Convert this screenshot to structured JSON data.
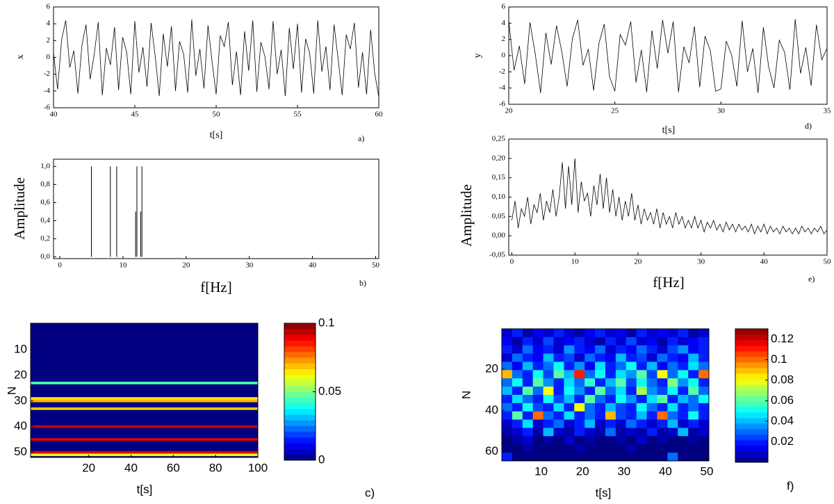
{
  "chart_data": [
    {
      "type": "line",
      "color": "#000000",
      "xlabel": "t[s]",
      "ylabel": "x",
      "annotation": "a)",
      "x": [
        40,
        40.25,
        40.5,
        40.75,
        41,
        41.25,
        41.5,
        41.75,
        42,
        42.25,
        42.5,
        42.75,
        43,
        43.25,
        43.5,
        43.75,
        44,
        44.25,
        44.5,
        44.75,
        45,
        45.25,
        45.5,
        45.75,
        46,
        46.25,
        46.5,
        46.75,
        47,
        47.25,
        47.5,
        47.75,
        48,
        48.25,
        48.5,
        48.75,
        49,
        49.25,
        49.5,
        49.75,
        50,
        50.25,
        50.5,
        50.75,
        51,
        51.25,
        51.5,
        51.75,
        52,
        52.25,
        52.5,
        52.75,
        53,
        53.25,
        53.5,
        53.75,
        54,
        54.25,
        54.5,
        54.75,
        55,
        55.25,
        55.5,
        55.75,
        56,
        56.25,
        56.5,
        56.75,
        57,
        57.25,
        57.5,
        57.75,
        58,
        58.25,
        58.5,
        58.75,
        59,
        59.25,
        59.5,
        59.75,
        60
      ],
      "values": [
        0.5,
        -3.8,
        2.1,
        4.4,
        -1.2,
        0.8,
        -4.3,
        1.5,
        3.9,
        -2.6,
        0.3,
        4.2,
        -4.5,
        1.1,
        -0.9,
        3.6,
        -3.9,
        2.4,
        0.6,
        -4.4,
        4.3,
        -1.8,
        1.2,
        -3.5,
        4.1,
        0.2,
        -4.6,
        2.8,
        -1.1,
        3.7,
        -4.0,
        1.9,
        0.4,
        -4.2,
        4.5,
        -2.2,
        1.0,
        -3.7,
        3.8,
        -0.5,
        -4.4,
        2.6,
        1.3,
        4.2,
        -3.3,
        0.7,
        -4.5,
        3.1,
        -1.6,
        4.4,
        -4.1,
        1.8,
        0.1,
        -3.8,
        4.3,
        -2.0,
        0.9,
        -4.6,
        3.5,
        -1.4,
        4.0,
        -4.2,
        2.2,
        0.5,
        -4.3,
        4.4,
        -1.7,
        1.3,
        -3.9,
        3.9,
        -0.2,
        -4.5,
        2.7,
        1.0,
        4.1,
        -3.6,
        0.6,
        -4.4,
        3.3,
        -1.9,
        -4.7
      ],
      "xlim": [
        40,
        60
      ],
      "xticks": [
        40,
        45,
        50,
        55,
        60
      ],
      "ylim": [
        -6,
        6
      ],
      "yticks": [
        -6,
        -4,
        -2,
        0,
        2,
        4,
        6
      ]
    },
    {
      "type": "stem",
      "color": "#000000",
      "xlabel": "f[Hz]",
      "ylabel": "Amplitude",
      "annotation": "b)",
      "x": [
        5,
        8,
        9,
        12,
        12.2,
        12.8,
        13
      ],
      "values": [
        1,
        1,
        1,
        0.5,
        1,
        0.5,
        1
      ],
      "xlim": [
        -1,
        50.5
      ],
      "xticks": [
        0,
        10,
        20,
        30,
        40,
        50
      ],
      "ylim": [
        -0.02,
        1.08
      ],
      "yticks": [
        {
          "value": 0,
          "label": "0,0"
        },
        {
          "value": 0.2,
          "label": "0,2"
        },
        {
          "value": 0.4,
          "label": "0,4"
        },
        {
          "value": 0.6,
          "label": "0,6"
        },
        {
          "value": 0.8,
          "label": "0,8"
        },
        {
          "value": 1,
          "label": "1,0"
        }
      ]
    },
    {
      "type": "heatmap",
      "colormap": "jet",
      "xlabel": "t[s]",
      "ylabel": "N",
      "annotation": "c)",
      "yreverse": true,
      "values": [
        0,
        0,
        0,
        0,
        0,
        0,
        0,
        0,
        0,
        0,
        0,
        0,
        0,
        0,
        0,
        0,
        0,
        0,
        0,
        0,
        0,
        0,
        0.045,
        0,
        0,
        0,
        0,
        0,
        0.065,
        0.07,
        0,
        0,
        0.068,
        0,
        0,
        0,
        0,
        0,
        0,
        0.092,
        0,
        0,
        0,
        0,
        0.09,
        0,
        0,
        0,
        0,
        0.09,
        0.06,
        0
      ],
      "xlim": [
        -7.5,
        100
      ],
      "xticks": [
        20,
        40,
        60,
        80,
        100
      ],
      "ylim": [
        -0.3,
        52
      ],
      "yticks": [
        10,
        20,
        30,
        40,
        50
      ],
      "clim": [
        0,
        0.1
      ],
      "cticks": [
        0,
        0.05,
        0.1
      ]
    },
    {
      "type": "line",
      "color": "#000000",
      "xlabel": "t[s]",
      "ylabel": "y",
      "annotation": "d)",
      "x": [
        20,
        20.25,
        20.5,
        20.75,
        21,
        21.25,
        21.5,
        21.75,
        22,
        22.25,
        22.5,
        22.75,
        23,
        23.25,
        23.5,
        23.75,
        24,
        24.25,
        24.5,
        24.75,
        25,
        25.25,
        25.5,
        25.75,
        26,
        26.25,
        26.5,
        26.75,
        27,
        27.25,
        27.5,
        27.75,
        28,
        28.25,
        28.5,
        28.75,
        29,
        29.25,
        29.5,
        29.75,
        30,
        30.25,
        30.5,
        30.75,
        31,
        31.25,
        31.5,
        31.75,
        32,
        32.25,
        32.5,
        32.75,
        33,
        33.25,
        33.5,
        33.75,
        34,
        34.25,
        34.5,
        34.75,
        35
      ],
      "values": [
        4.3,
        -1.8,
        1.2,
        -3.5,
        4.1,
        0.2,
        -4.6,
        2.8,
        -1.1,
        3.7,
        0.5,
        -3.8,
        2.1,
        4.4,
        -1.2,
        0.8,
        -4.3,
        1.5,
        3.9,
        -2.6,
        -4.4,
        2.6,
        1.3,
        4.2,
        -3.3,
        0.7,
        -4.5,
        3.1,
        -1.6,
        4.4,
        0.3,
        4.2,
        -4.5,
        1.1,
        -0.9,
        3.6,
        -3.9,
        2.4,
        0.6,
        -4.4,
        -4.1,
        1.8,
        0.1,
        -3.8,
        4.3,
        -2.0,
        0.9,
        -4.6,
        3.5,
        -1.4,
        -4.0,
        1.9,
        0.4,
        -4.2,
        4.5,
        -2.2,
        1.0,
        -3.7,
        3.8,
        -0.5,
        0.9
      ],
      "xlim": [
        20,
        35
      ],
      "xticks": [
        20,
        25,
        30,
        35
      ],
      "ylim": [
        -6,
        6
      ],
      "yticks": [
        -6,
        -4,
        -2,
        0,
        2,
        4,
        6
      ]
    },
    {
      "type": "line",
      "color": "#000000",
      "xlabel": "f[Hz]",
      "ylabel": "Amplitude",
      "annotation": "e)",
      "x": [
        0,
        0.5,
        1,
        1.5,
        2,
        2.5,
        3,
        3.5,
        4,
        4.5,
        5,
        5.5,
        6,
        6.5,
        7,
        7.5,
        8,
        8.5,
        9,
        9.5,
        10,
        10.5,
        11,
        11.5,
        12,
        12.5,
        13,
        13.5,
        14,
        14.5,
        15,
        15.5,
        16,
        16.5,
        17,
        17.5,
        18,
        18.5,
        19,
        19.5,
        20,
        20.5,
        21,
        21.5,
        22,
        22.5,
        23,
        23.5,
        24,
        24.5,
        25,
        25.5,
        26,
        26.5,
        27,
        27.5,
        28,
        28.5,
        29,
        29.5,
        30,
        30.5,
        31,
        31.5,
        32,
        32.5,
        33,
        33.5,
        34,
        34.5,
        35,
        35.5,
        36,
        36.5,
        37,
        37.5,
        38,
        38.5,
        39,
        39.5,
        40,
        40.5,
        41,
        41.5,
        42,
        42.5,
        43,
        43.5,
        44,
        44.5,
        45,
        45.5,
        46,
        46.5,
        47,
        47.5,
        48,
        48.5,
        49,
        49.5,
        50
      ],
      "values": [
        0.04,
        0.09,
        0.02,
        0.07,
        0.05,
        0.1,
        0.03,
        0.08,
        0.06,
        0.11,
        0.04,
        0.09,
        0.06,
        0.12,
        0.05,
        0.1,
        0.19,
        0.07,
        0.18,
        0.08,
        0.2,
        0.06,
        0.14,
        0.09,
        0.11,
        0.05,
        0.13,
        0.08,
        0.16,
        0.07,
        0.15,
        0.06,
        0.12,
        0.05,
        0.1,
        0.04,
        0.09,
        0.05,
        0.11,
        0.04,
        0.08,
        0.03,
        0.07,
        0.04,
        0.06,
        0.03,
        0.07,
        0.02,
        0.06,
        0.03,
        0.05,
        0.02,
        0.06,
        0.03,
        0.05,
        0.02,
        0.04,
        0.02,
        0.05,
        0.02,
        0.04,
        0.01,
        0.035,
        0.02,
        0.04,
        0.015,
        0.03,
        0.01,
        0.035,
        0.015,
        0.03,
        0.01,
        0.03,
        0.015,
        0.025,
        0.01,
        0.03,
        0.005,
        0.025,
        0.01,
        0.03,
        0.005,
        0.025,
        0.01,
        0.02,
        0.005,
        0.025,
        0.01,
        0.02,
        0.005,
        0.02,
        0.005,
        0.025,
        0.01,
        0.02,
        0.005,
        0.02,
        0.01,
        0.025,
        0.005,
        0.015
      ],
      "xlim": [
        -0.5,
        50
      ],
      "xticks": [
        0,
        10,
        20,
        30,
        40,
        50
      ],
      "ylim": [
        -0.05,
        0.25
      ],
      "yticks": [
        {
          "value": -0.05,
          "label": "-0,05"
        },
        {
          "value": 0,
          "label": "0,00"
        },
        {
          "value": 0.05,
          "label": "0,05"
        },
        {
          "value": 0.1,
          "label": "0,10"
        },
        {
          "value": 0.15,
          "label": "0,15"
        },
        {
          "value": 0.2,
          "label": "0,20"
        },
        {
          "value": 0.25,
          "label": "0,25"
        }
      ]
    },
    {
      "type": "heatmap",
      "colormap": "jet",
      "xlabel": "t[s]",
      "ylabel": "N",
      "annotation": "f)",
      "yreverse": true,
      "values": [
        [
          0.01,
          0.02,
          0.005,
          0.015,
          0.01,
          0.02,
          0.01,
          0.005,
          0.015,
          0.02,
          0.01,
          0.015,
          0.005,
          0.02,
          0.01,
          0.015,
          0.01,
          0.02,
          0.005,
          0.01
        ],
        [
          0.015,
          0.005,
          0.02,
          0.01,
          0.025,
          0.01,
          0.015,
          0.02,
          0.01,
          0.005,
          0.02,
          0.01,
          0.025,
          0.01,
          0.015,
          0.005,
          0.02,
          0.01,
          0.015,
          0.02
        ],
        [
          0.02,
          0.01,
          0.03,
          0.015,
          0.02,
          0.01,
          0.035,
          0.02,
          0.015,
          0.03,
          0.01,
          0.02,
          0.015,
          0.03,
          0.02,
          0.01,
          0.025,
          0.035,
          0.015,
          0.02
        ],
        [
          0.01,
          0.03,
          0.02,
          0.015,
          0.04,
          0.02,
          0.025,
          0.01,
          0.03,
          0.02,
          0.015,
          0.04,
          0.02,
          0.025,
          0.01,
          0.03,
          0.02,
          0.015,
          0.04,
          0.02
        ],
        [
          0.03,
          0.015,
          0.04,
          0.02,
          0.03,
          0.05,
          0.02,
          0.035,
          0.015,
          0.045,
          0.02,
          0.03,
          0.05,
          0.02,
          0.04,
          0.015,
          0.03,
          0.02,
          0.045,
          0.03
        ],
        [
          0.09,
          0.03,
          0.02,
          0.05,
          0.025,
          0.06,
          0.04,
          0.11,
          0.03,
          0.05,
          0.02,
          0.045,
          0.035,
          0.06,
          0.025,
          0.08,
          0.03,
          0.05,
          0.02,
          0.1
        ],
        [
          0.03,
          0.05,
          0.02,
          0.06,
          0.035,
          0.02,
          0.045,
          0.03,
          0.055,
          0.02,
          0.04,
          0.06,
          0.025,
          0.05,
          0.03,
          0.02,
          0.065,
          0.035,
          0.05,
          0.02
        ],
        [
          0.04,
          0.02,
          0.06,
          0.03,
          0.08,
          0.02,
          0.05,
          0.035,
          0.02,
          0.06,
          0.03,
          0.045,
          0.02,
          0.07,
          0.035,
          0.025,
          0.05,
          0.02,
          0.06,
          0.03
        ],
        [
          0.02,
          0.045,
          0.03,
          0.02,
          0.05,
          0.025,
          0.04,
          0.02,
          0.06,
          0.03,
          0.02,
          0.05,
          0.035,
          0.02,
          0.045,
          0.06,
          0.02,
          0.04,
          0.03,
          0.05
        ],
        [
          0.03,
          0.02,
          0.05,
          0.025,
          0.02,
          0.045,
          0.02,
          0.08,
          0.03,
          0.02,
          0.04,
          0.025,
          0.02,
          0.05,
          0.03,
          0.02,
          0.045,
          0.02,
          0.03,
          0.02
        ],
        [
          0.02,
          0.06,
          0.02,
          0.1,
          0.03,
          0.02,
          0.045,
          0.02,
          0.03,
          0.02,
          0.09,
          0.025,
          0.02,
          0.04,
          0.02,
          0.1,
          0.03,
          0.02,
          0.05,
          0.02
        ],
        [
          0.01,
          0.02,
          0.045,
          0.01,
          0.02,
          0.03,
          0.01,
          0.02,
          0.04,
          0.01,
          0.02,
          0.01,
          0.03,
          0.02,
          0.01,
          0.02,
          0.04,
          0.01,
          0.02,
          0.01
        ],
        [
          0.005,
          0.01,
          0.02,
          0.005,
          0.04,
          0.01,
          0.005,
          0.02,
          0.01,
          0.005,
          0.03,
          0.005,
          0.01,
          0.005,
          0.02,
          0.005,
          0.01,
          0.04,
          0.005,
          0.01
        ],
        [
          0,
          0.005,
          0.01,
          0,
          0.005,
          0,
          0.01,
          0,
          0.005,
          0,
          0,
          0.005,
          0,
          0.01,
          0,
          0.005,
          0,
          0,
          0.005,
          0
        ],
        [
          0,
          0,
          0.005,
          0,
          0,
          0,
          0,
          0.005,
          0,
          0,
          0,
          0,
          0.005,
          0,
          0,
          0,
          0,
          0,
          0,
          0
        ],
        [
          0.02,
          0,
          0,
          0,
          0,
          0,
          0,
          0,
          0,
          0,
          0,
          0,
          0,
          0,
          0,
          0,
          0.03,
          0,
          0,
          0
        ]
      ],
      "xlim": [
        0.5,
        50.5
      ],
      "xticks": [
        10,
        20,
        30,
        40,
        50
      ],
      "ylim": [
        0.5,
        64.5
      ],
      "yticks": [
        20,
        40,
        60
      ],
      "clim": [
        0,
        0.13
      ],
      "cticks": [
        0.02,
        0.04,
        0.06,
        0.08,
        0.1,
        0.12
      ]
    }
  ]
}
